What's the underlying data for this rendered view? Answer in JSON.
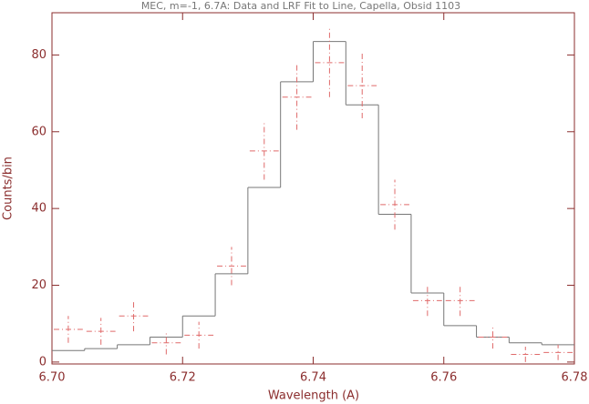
{
  "chart_data": {
    "type": "step",
    "title": "MEC, m=-1, 6.7A: Data and LRF Fit to Line, Capella, Obsid 1103",
    "xlabel": "Wavelength (A)",
    "ylabel": "Counts/bin",
    "bins": [
      6.7,
      6.705,
      6.71,
      6.715,
      6.72,
      6.725,
      6.73,
      6.735,
      6.74,
      6.745,
      6.75,
      6.755,
      6.76,
      6.765,
      6.77,
      6.775,
      6.78
    ],
    "data": {
      "color": "#e06a6a",
      "values": [
        8.5,
        8,
        12,
        5,
        7,
        25,
        55,
        69,
        78,
        72,
        41,
        16,
        16,
        6.5,
        2,
        2.5
      ],
      "errors": [
        3.5,
        3.5,
        4,
        3,
        3.5,
        5,
        7.5,
        8.5,
        9,
        8.5,
        6.5,
        4,
        4,
        3,
        2,
        2
      ]
    },
    "model": {
      "color": "#777777",
      "values": [
        3,
        3.5,
        4.5,
        6.5,
        12,
        23,
        45.5,
        73,
        83.5,
        67,
        38.5,
        18,
        9.5,
        6.5,
        5,
        4.5
      ]
    },
    "xlim": [
      6.7,
      6.78
    ],
    "xticks": [
      {
        "value": 6.7,
        "label": "6.70"
      },
      {
        "value": 6.72,
        "label": "6.72"
      },
      {
        "value": 6.74,
        "label": "6.74"
      },
      {
        "value": 6.76,
        "label": "6.76"
      },
      {
        "value": 6.78,
        "label": "6.78"
      }
    ],
    "ylim": [
      -0.5,
      91
    ],
    "yticks": [
      0,
      20,
      40,
      60,
      80
    ],
    "axis_color": "#8b2e2e"
  }
}
